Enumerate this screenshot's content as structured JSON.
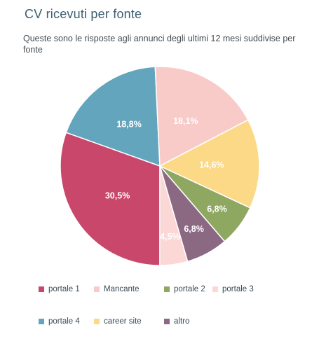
{
  "header": {
    "title": "CV ricevuti per fonte",
    "subtitle": "Queste sono le risposte agli annunci degli ultimi 12 mesi suddivise per fonte"
  },
  "chart_data": {
    "type": "pie",
    "title": "CV ricevuti per fonte",
    "subtitle": "Queste sono le risposte agli annunci degli ultimi 12 mesi suddivise per fonte",
    "slices": [
      {
        "name": "portale 1",
        "value": 30.5,
        "label": "30,5%",
        "color": "#c8476a"
      },
      {
        "name": "portale 4",
        "value": 18.8,
        "label": "18,8%",
        "color": "#63a5bd"
      },
      {
        "name": "Mancante",
        "value": 18.1,
        "label": "18,1%",
        "color": "#f9cbc8"
      },
      {
        "name": "career site",
        "value": 14.6,
        "label": "14,6%",
        "color": "#fbd986"
      },
      {
        "name": "portale 2",
        "value": 6.8,
        "label": "6,8%",
        "color": "#8ea862"
      },
      {
        "name": "altro",
        "value": 6.8,
        "label": "6,8%",
        "color": "#8c6983"
      },
      {
        "name": "portale 3",
        "value": 4.5,
        "label": "4,5%",
        "color": "#fbd7d5"
      }
    ],
    "start_angle_deg": 90,
    "direction": "clockwise",
    "label_color": "#ffffff",
    "legend": {
      "placement": "bottom",
      "items": [
        {
          "name": "portale 1",
          "color": "#c8476a"
        },
        {
          "name": "Mancante",
          "color": "#f9cbc8"
        },
        {
          "name": "portale 2",
          "color": "#8ea862"
        },
        {
          "name": "portale 3",
          "color": "#fbd7d5"
        },
        {
          "name": "portale 4",
          "color": "#63a5bd"
        },
        {
          "name": "career site",
          "color": "#fbd986"
        },
        {
          "name": "altro",
          "color": "#8c6983"
        }
      ]
    }
  }
}
